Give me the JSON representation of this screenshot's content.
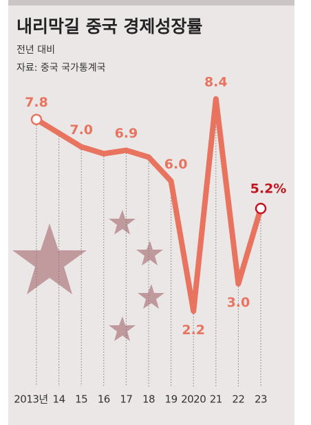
{
  "chart_data": {
    "type": "line",
    "title": "내리막길 중국 경제성장률",
    "subtitle": "전년 대비",
    "source": "자료: 중국 국가통계국",
    "categories": [
      "2013년",
      "14",
      "15",
      "16",
      "17",
      "18",
      "19",
      "2020",
      "21",
      "22",
      "23"
    ],
    "values": [
      7.8,
      7.4,
      7.0,
      6.8,
      6.9,
      6.7,
      6.0,
      2.2,
      8.4,
      3.0,
      5.2
    ],
    "value_labels": [
      "7.8",
      null,
      "7.0",
      null,
      "6.9",
      null,
      "6.0",
      "2.2",
      "8.4",
      "3.0",
      "5.2%"
    ],
    "color": "#e8735f",
    "highlight_color": "#c0151f",
    "ylim": [
      0,
      9
    ]
  }
}
